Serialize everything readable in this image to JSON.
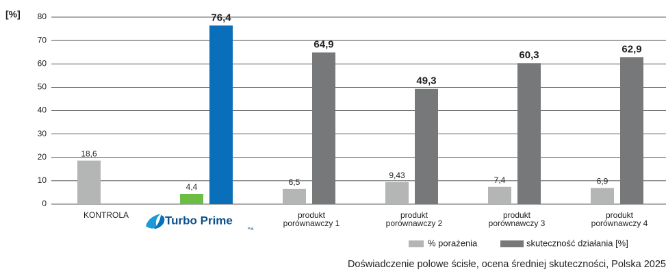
{
  "chart_data": {
    "type": "bar",
    "y_label": "[%]",
    "categories": [
      [
        "KONTROLA"
      ],
      [
        "Turbo Prime",
        "Pak"
      ],
      [
        "produkt",
        "porównawczy 1"
      ],
      [
        "produkt",
        "porównawczy 2"
      ],
      [
        "produkt",
        "porównawczy 3"
      ],
      [
        "produkt",
        "porównawczy 4"
      ]
    ],
    "category_styles": [
      null,
      "logo",
      null,
      null,
      null,
      null
    ],
    "series": [
      {
        "name": "% porażenia",
        "color": "#b4b5b5",
        "colors": [
          "#b4b5b5",
          "#6cbd45",
          "#b4b5b5",
          "#b4b5b5",
          "#b4b5b5",
          "#b4b5b5"
        ],
        "values": [
          18.6,
          4.4,
          6.5,
          9.43,
          7.4,
          6.9
        ],
        "value_labels": [
          "18,6",
          "4,4",
          "6,5",
          "9,43",
          "7,4",
          "6,9"
        ]
      },
      {
        "name": "skuteczność działania [%]",
        "color": "#77787a",
        "colors": [
          "#77787a",
          "#0a6fba",
          "#77787a",
          "#77787a",
          "#77787a",
          "#77787a"
        ],
        "values": [
          null,
          76.4,
          64.9,
          49.3,
          60.3,
          62.9
        ],
        "value_labels": [
          null,
          "76,4",
          "64,9",
          "49,3",
          "60,3",
          "62,9"
        ]
      }
    ],
    "ylim": [
      0,
      80
    ],
    "yticks": [
      0,
      10,
      20,
      30,
      40,
      50,
      60,
      70,
      80
    ],
    "grid": true,
    "legend": "bottom-right",
    "footnote": "Doświadczenie polowe ścisłe, ocena średniej skuteczności, Polska 2025"
  }
}
